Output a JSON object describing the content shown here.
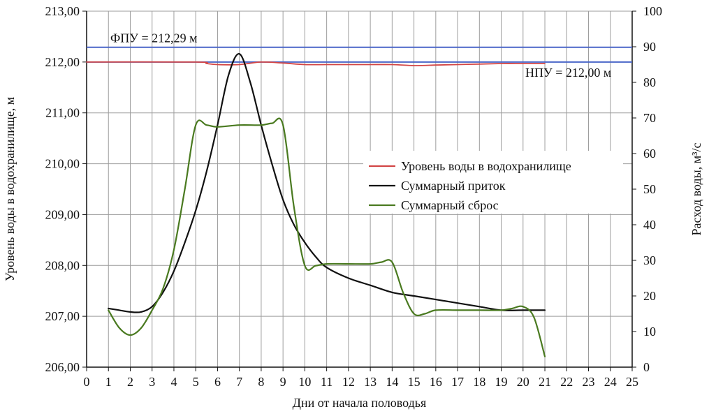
{
  "chart_data": {
    "type": "line",
    "xlabel": "Дни от начала половодья",
    "ylabel_left": "Уровень воды в водохранилище, м",
    "ylabel_right": "Расход воды, м³/с",
    "xlim": [
      0,
      25
    ],
    "ylim_left": [
      206,
      213
    ],
    "ylim_right": [
      0,
      100
    ],
    "grid": true,
    "legend_position": "center-right",
    "x_ticks": [
      "0",
      "1",
      "2",
      "3",
      "4",
      "5",
      "6",
      "7",
      "8",
      "9",
      "10",
      "11",
      "12",
      "13",
      "14",
      "15",
      "16",
      "17",
      "18",
      "19",
      "20",
      "21",
      "22",
      "23",
      "24",
      "25"
    ],
    "y_left_ticks": [
      "206,00",
      "207,00",
      "208,00",
      "209,00",
      "210,00",
      "211,00",
      "212,00",
      "213,00"
    ],
    "y_right_ticks": [
      "0",
      "10",
      "20",
      "30",
      "40",
      "50",
      "60",
      "70",
      "80",
      "90",
      "100"
    ],
    "reference_lines": [
      {
        "label": "ФПУ = 212,29 м",
        "value": 212.29,
        "axis": "left",
        "color": "#4a66c8"
      },
      {
        "label": "НПУ = 212,00 м",
        "value": 212.0,
        "axis": "left",
        "color": "#4a66c8"
      }
    ],
    "series": [
      {
        "name": "Уровень воды в водохранилище",
        "axis": "left",
        "color": "#d24545",
        "x": [
          0,
          5,
          5.5,
          6,
          7,
          8,
          9,
          10,
          11,
          12,
          13,
          14,
          15,
          16,
          17,
          18,
          19,
          20,
          21
        ],
        "y": [
          212.0,
          212.0,
          211.97,
          211.95,
          211.95,
          212.0,
          211.98,
          211.95,
          211.95,
          211.95,
          211.95,
          211.95,
          211.93,
          211.94,
          211.95,
          211.96,
          211.97,
          211.97,
          211.97
        ]
      },
      {
        "name": "Суммарный приток",
        "axis": "right",
        "color": "#111111",
        "x": [
          1,
          1.5,
          2,
          2.5,
          3,
          3.5,
          4,
          4.5,
          5,
          5.5,
          6,
          6.5,
          7,
          7.5,
          8,
          8.5,
          9,
          9.5,
          10,
          10.5,
          11,
          12,
          13,
          14,
          15,
          16,
          17,
          18,
          19,
          20,
          21
        ],
        "y": [
          16.5,
          16,
          15.5,
          15.5,
          17,
          21,
          27,
          35,
          44,
          55,
          68,
          82,
          88,
          80,
          68,
          57,
          47,
          40,
          35,
          31,
          28,
          25,
          23,
          21,
          20,
          19,
          18,
          17,
          16,
          16,
          16
        ]
      },
      {
        "name": "Суммарный сброс",
        "axis": "right",
        "color": "#4a7a20",
        "x": [
          1,
          1.5,
          2,
          2.5,
          3,
          3.5,
          4,
          4.5,
          5,
          5.5,
          6,
          7,
          8,
          8.5,
          9,
          9.5,
          10,
          10.5,
          11,
          12,
          13,
          13.5,
          14,
          14.5,
          15,
          15.5,
          16,
          17,
          18,
          19,
          19.5,
          20,
          20.5,
          21
        ],
        "y": [
          16,
          11,
          9,
          11,
          16,
          22,
          33,
          50,
          68,
          68,
          67.5,
          68,
          68,
          68.5,
          68,
          45,
          28.5,
          28.5,
          29,
          29,
          29,
          29.5,
          29.5,
          21,
          15,
          15,
          16,
          16,
          16,
          16,
          16.5,
          17,
          14,
          3
        ]
      }
    ]
  }
}
